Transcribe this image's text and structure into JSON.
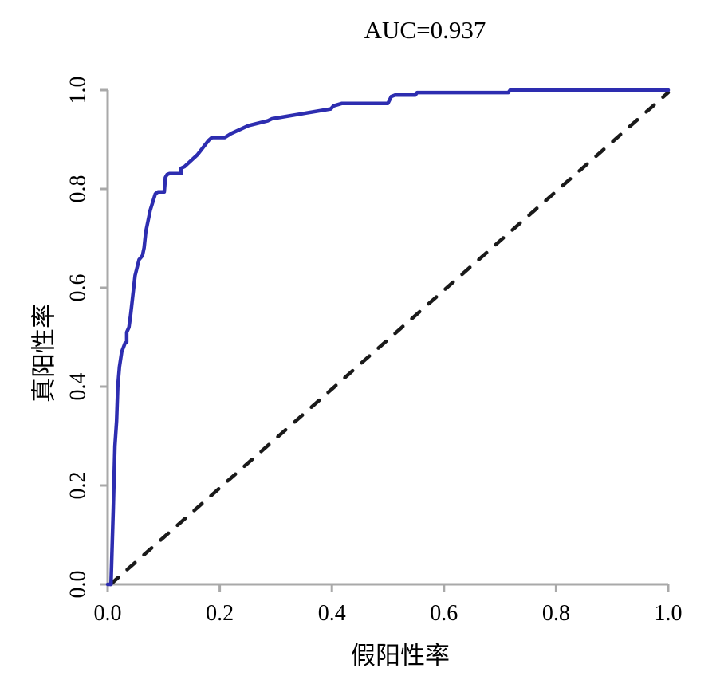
{
  "chart_data": {
    "type": "line",
    "title": "AUC=0.937",
    "auc": 0.937,
    "xlabel": "假阳性率",
    "ylabel": "真阳性率",
    "xlim": [
      0.0,
      1.0
    ],
    "ylim": [
      0.0,
      1.0
    ],
    "x_ticks": [
      0.0,
      0.2,
      0.4,
      0.6,
      0.8,
      1.0
    ],
    "y_ticks": [
      0.0,
      0.2,
      0.4,
      0.6,
      0.8,
      1.0
    ],
    "x_tick_labels": [
      "0.0",
      "0.2",
      "0.4",
      "0.6",
      "0.8",
      "1.0"
    ],
    "y_tick_labels": [
      "0.0",
      "0.2",
      "0.4",
      "0.6",
      "0.8",
      "1.0"
    ],
    "grid": false,
    "legend": "none",
    "colors": {
      "roc_curve": "#2d2db0",
      "diagonal": "#1a1a1a",
      "axis": "#a9a9a9",
      "text": "#000000",
      "background": "#ffffff"
    },
    "series": [
      {
        "name": "roc-curve",
        "style": "solid",
        "color": "#2d2db0",
        "points": [
          [
            0.0,
            0.0
          ],
          [
            0.006,
            0.0
          ],
          [
            0.01,
            0.15
          ],
          [
            0.013,
            0.28
          ],
          [
            0.016,
            0.33
          ],
          [
            0.018,
            0.4
          ],
          [
            0.021,
            0.44
          ],
          [
            0.025,
            0.47
          ],
          [
            0.031,
            0.488
          ],
          [
            0.034,
            0.49
          ],
          [
            0.034,
            0.51
          ],
          [
            0.038,
            0.52
          ],
          [
            0.041,
            0.545
          ],
          [
            0.045,
            0.585
          ],
          [
            0.049,
            0.625
          ],
          [
            0.056,
            0.657
          ],
          [
            0.062,
            0.665
          ],
          [
            0.065,
            0.681
          ],
          [
            0.068,
            0.713
          ],
          [
            0.076,
            0.757
          ],
          [
            0.085,
            0.79
          ],
          [
            0.09,
            0.794
          ],
          [
            0.101,
            0.794
          ],
          [
            0.103,
            0.823
          ],
          [
            0.106,
            0.829
          ],
          [
            0.11,
            0.831
          ],
          [
            0.131,
            0.831
          ],
          [
            0.131,
            0.842
          ],
          [
            0.137,
            0.845
          ],
          [
            0.16,
            0.869
          ],
          [
            0.18,
            0.898
          ],
          [
            0.186,
            0.904
          ],
          [
            0.209,
            0.904
          ],
          [
            0.22,
            0.912
          ],
          [
            0.251,
            0.928
          ],
          [
            0.286,
            0.938
          ],
          [
            0.293,
            0.942
          ],
          [
            0.398,
            0.962
          ],
          [
            0.403,
            0.968
          ],
          [
            0.418,
            0.973
          ],
          [
            0.5,
            0.973
          ],
          [
            0.506,
            0.987
          ],
          [
            0.513,
            0.99
          ],
          [
            0.549,
            0.99
          ],
          [
            0.552,
            0.995
          ],
          [
            0.715,
            0.995
          ],
          [
            0.718,
            1.0
          ],
          [
            1.0,
            1.0
          ]
        ]
      },
      {
        "name": "chance-diagonal",
        "style": "dashed",
        "color": "#1a1a1a",
        "points": [
          [
            0.005,
            0.0
          ],
          [
            1.0,
            0.995
          ]
        ]
      }
    ]
  }
}
